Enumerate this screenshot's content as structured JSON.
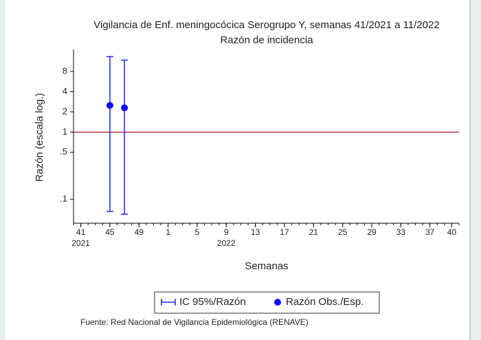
{
  "chart_data": {
    "type": "errorbar",
    "title": "Vigilancia de Enf. meningocócica Serogrupo Y, semanas 41/2021 a 11/2022",
    "subtitle": "Razón de incidencia",
    "y_label": "Razón (escala log.)",
    "x_label": "Semanas",
    "source": "Fuente: Red Nacional de Vigilancia Epidemiológica (RENAVE)",
    "log_y": true,
    "x": [
      4,
      6
    ],
    "series": [
      {
        "name": "Razón Obs./Esp.",
        "color": "#0a0aff",
        "values": [
          2.5,
          2.3
        ]
      }
    ],
    "interval": {
      "name": "IC 95%/Razón",
      "color": "#1a2adf",
      "lower": [
        0.066,
        0.06
      ],
      "upper": [
        13.3,
        11.8
      ]
    },
    "reference_line": 1,
    "reference_color": "#b0384a",
    "xlim": [
      -1,
      52
    ],
    "ylim": [
      0.044,
      17
    ],
    "yticks": [
      8,
      4,
      2,
      1,
      {
        "value": 0.5,
        "label": ".5"
      },
      {
        "value": 0.1,
        "label": ".1"
      }
    ],
    "xticks": [
      {
        "value": 0,
        "label": "41",
        "year": "2021"
      },
      {
        "value": 4,
        "label": "45"
      },
      {
        "value": 8,
        "label": "49"
      },
      {
        "value": 12,
        "label": "1"
      },
      {
        "value": 16,
        "label": "5"
      },
      {
        "value": 20,
        "label": "9",
        "year": "2022"
      },
      {
        "value": 24,
        "label": "13"
      },
      {
        "value": 28,
        "label": "17"
      },
      {
        "value": 32,
        "label": "21"
      },
      {
        "value": 36,
        "label": "25"
      },
      {
        "value": 40,
        "label": "29"
      },
      {
        "value": 44,
        "label": "33"
      },
      {
        "value": 48,
        "label": "37"
      },
      {
        "value": 51,
        "label": "40"
      }
    ]
  }
}
